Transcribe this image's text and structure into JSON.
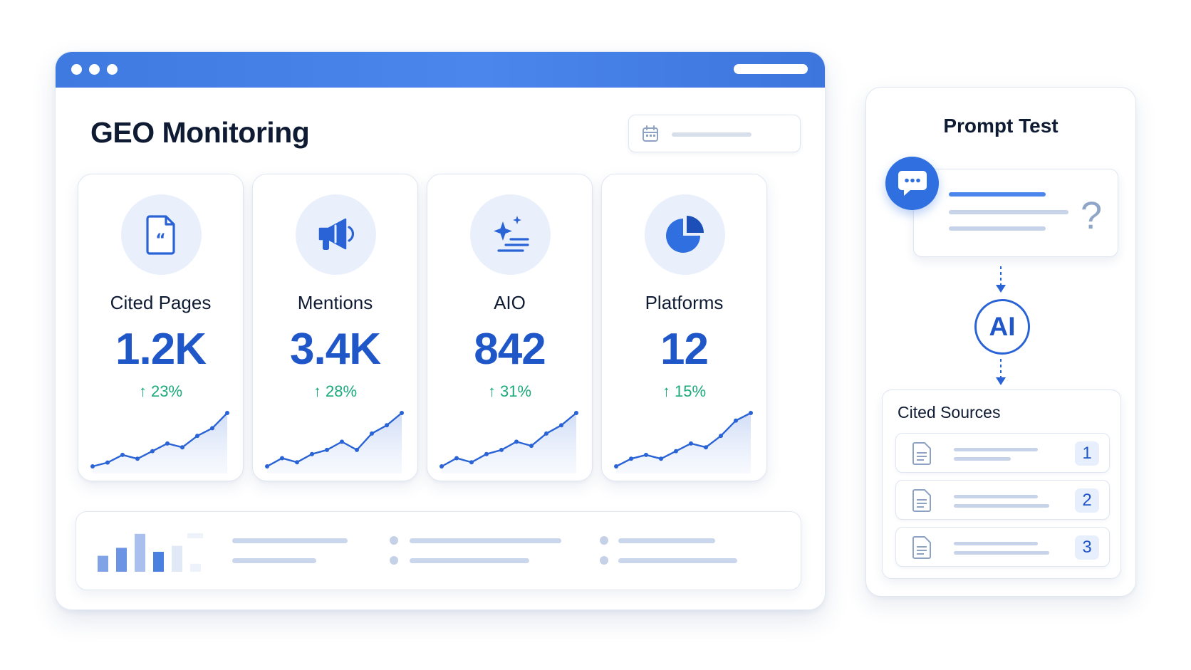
{
  "dashboard": {
    "title": "GEO Monitoring",
    "kpis": [
      {
        "label": "Cited Pages",
        "value": "1.2K",
        "delta": "23%",
        "icon": "quote-document-icon",
        "trend": [
          2,
          3,
          5,
          4,
          6,
          8,
          7,
          10,
          12,
          16
        ]
      },
      {
        "label": "Mentions",
        "value": "3.4K",
        "delta": "28%",
        "icon": "megaphone-icon",
        "trend": [
          3,
          5,
          4,
          6,
          7,
          9,
          7,
          11,
          13,
          16
        ]
      },
      {
        "label": "AIO",
        "value": "842",
        "delta": "31%",
        "icon": "sparkle-list-icon",
        "trend": [
          2,
          4,
          3,
          5,
          6,
          8,
          7,
          10,
          12,
          15
        ]
      },
      {
        "label": "Platforms",
        "value": "12",
        "delta": "15%",
        "icon": "pie-chart-icon",
        "trend": [
          2,
          4,
          5,
          4,
          6,
          8,
          7,
          10,
          14,
          16
        ]
      }
    ],
    "summary_bars": [
      0.4,
      0.6,
      0.95,
      0.5,
      0.65,
      0.2
    ]
  },
  "prompt_test": {
    "title": "Prompt Test",
    "question_mark": "?",
    "ai_label": "AI",
    "cited_sources": {
      "title": "Cited Sources",
      "items": [
        {
          "number": "1"
        },
        {
          "number": "2"
        },
        {
          "number": "3"
        }
      ]
    }
  },
  "colors": {
    "accent": "#2f6fe0",
    "value_blue": "#1f57c9",
    "positive": "#1aa97a"
  }
}
